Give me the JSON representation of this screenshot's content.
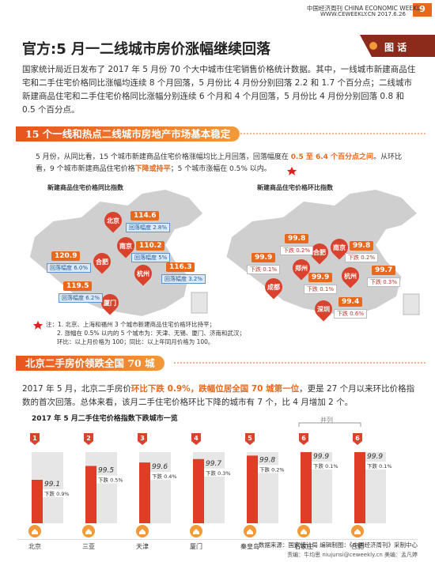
{
  "header": {
    "magazine": "中国经济周刊",
    "magazine_en": "CHINA ECONOMIC WEEKLY",
    "website": "WWW.CEWEEKLY.CN",
    "date": "2017.6.26",
    "page": 9,
    "tag": "图 话"
  },
  "title": "官方:5 月一二线城市房价涨幅继续回落",
  "intro": "国家统计局近日发布了 2017 年 5 月份 70 个大中城市住宅销售价格统计数据。其中，一线城市新建商品住宅和二手住宅价格同比涨幅均连续 8 个月回落，5 月份比 4 月份分别回落 2.2 和 1.7 个百分点；二线城市新建商品住宅和二手住宅价格同比涨幅分别连续 6 个月和 4 个月回落，5 月份比 4 月份分别回落 0.8 和 0.5 个百分点。",
  "section1": {
    "heading": "15 个一线和热点二线城市房地产市场基本稳定",
    "paragraph": [
      {
        "text": "5 月份，从同比看，15 个城市新建商品住宅价格涨幅均比上月回落，回落幅度在 ",
        "highlight": false
      },
      {
        "text": "0.5 至 6.4 个百分点之间",
        "highlight": true
      },
      {
        "text": "。从环比看，9 个城市新建商品住宅价格",
        "highlight": false
      },
      {
        "text": "下降或持平",
        "highlight": true
      },
      {
        "text": "；5 个城市涨幅在 0.5% 以内。",
        "highlight": false
      }
    ],
    "map_yoy": {
      "title": "新建商品住宅价格同比指数",
      "pins": [
        "北京",
        "南京",
        "合肥",
        "杭州",
        "厦门"
      ],
      "callouts": [
        {
          "value": 114.6,
          "note": "回落幅度 2.8%"
        },
        {
          "value": 110.2,
          "note": "回落幅度 5%"
        },
        {
          "value": 120.9,
          "note": "回落幅度 6.0%"
        },
        {
          "value": 116.3,
          "note": "回落幅度 3.2%"
        },
        {
          "value": 119.5,
          "note": "回落幅度 6.2%"
        }
      ]
    },
    "map_mom": {
      "title": "新建商品住宅价格环比指数",
      "pins": [
        "合肥",
        "南京",
        "郑州",
        "成都",
        "杭州",
        "深圳"
      ],
      "callouts": [
        {
          "value": 99.8,
          "note": "下跌 0.2%"
        },
        {
          "value": 99.8,
          "note": "下跌 0.2%"
        },
        {
          "value": 99.9,
          "note": "下跌 0.1%"
        },
        {
          "value": 99.9,
          "note": "下跌 0.1%"
        },
        {
          "value": 99.7,
          "note": "下跌 0.3%"
        },
        {
          "value": 99.4,
          "note": "下跌 0.6%"
        }
      ]
    },
    "notes": [
      "注：1. 北京、上海和福州 3 个城市新建商品住宅价格环比持平；",
      "2. 涨幅在 0.5% 以内的 5 个城市为：天津、无锡、厦门、济南和武汉；",
      "环比：以上月价格为 100；同比：以上年同月价格为 100。"
    ]
  },
  "section2": {
    "heading": "北京二手房价领跌全国 70 城",
    "paragraph": [
      {
        "text": "2017 年 5 月，北京二手房价",
        "highlight": false
      },
      {
        "text": "环比下跌 0.9%，跌幅位居全国 70 城第一位",
        "highlight": true
      },
      {
        "text": "，更是 27 个月以来环比价格指数的首次回落。总体来看，该月二手住宅价格环比下降的城市有 7 个，比 4 月增加 2 个。",
        "highlight": false
      }
    ],
    "chart": {
      "title": "2017 年 5 月二手住宅价格指数下跌城市一览",
      "tie_label": "并列",
      "items": [
        {
          "rank": 1,
          "value": 99.1,
          "drop": "下跌 0.9%",
          "city": "北京"
        },
        {
          "rank": 2,
          "value": 99.5,
          "drop": "下跌 0.5%",
          "city": "三亚"
        },
        {
          "rank": 3,
          "value": 99.6,
          "drop": "下跌 0.4%",
          "city": "天津"
        },
        {
          "rank": 4,
          "value": 99.7,
          "drop": "下跌 0.3%",
          "city": "厦门"
        },
        {
          "rank": 5,
          "value": 99.8,
          "drop": "下跌 0.2%",
          "city": "秦皇岛"
        },
        {
          "rank": 6,
          "value": 99.9,
          "drop": "下跌 0.1%",
          "city": "石家庄"
        },
        {
          "rank": 6,
          "value": 99.9,
          "drop": "下跌 0.1%",
          "city": "合肥"
        }
      ]
    }
  },
  "footer": {
    "source": "数据来源：国家统计局  编辑制图：《中国经济周刊》采制中心",
    "credits": "责编：牛均思 niujunsi@ceweekly.cn  美编：孟凡婷"
  }
}
